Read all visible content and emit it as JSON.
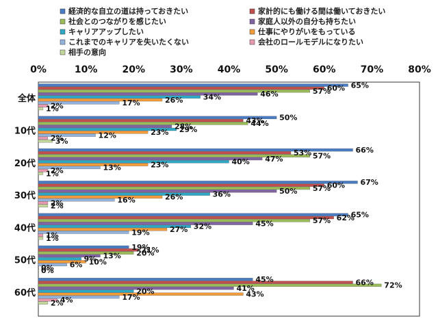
{
  "chart_data": {
    "type": "bar",
    "orientation": "horizontal",
    "x_axis": {
      "min": 0,
      "max": 80,
      "step": 10,
      "unit": "%",
      "position": "top",
      "tick_labels": [
        "0%",
        "10%",
        "20%",
        "30%",
        "40%",
        "50%",
        "60%",
        "70%",
        "80%"
      ]
    },
    "grid": false,
    "legend_position": "top",
    "categories": [
      "全体",
      "10代",
      "20代",
      "30代",
      "40代",
      "50代",
      "60代"
    ],
    "series": [
      {
        "name": "経済的な自立の道は持っておきたい",
        "color": "#4a7cc4",
        "values": [
          65,
          50,
          66,
          67,
          65,
          19,
          45
        ]
      },
      {
        "name": "家計的にも働ける間は働いておきたい",
        "color": "#c0504d",
        "values": [
          60,
          43,
          53,
          60,
          62,
          21,
          66
        ]
      },
      {
        "name": "社会とのつながりを感じたい",
        "color": "#9bbb59",
        "values": [
          57,
          44,
          57,
          57,
          57,
          20,
          72
        ]
      },
      {
        "name": "家庭人以外の自分も持ちたい",
        "color": "#8064a2",
        "values": [
          46,
          28,
          47,
          50,
          45,
          13,
          41
        ]
      },
      {
        "name": "キャリアアップしたい",
        "color": "#2ea8c4",
        "values": [
          34,
          29,
          40,
          36,
          32,
          9,
          20
        ]
      },
      {
        "name": "仕事にやりがいをもっている",
        "color": "#f39c3c",
        "values": [
          26,
          23,
          23,
          26,
          27,
          10,
          43
        ]
      },
      {
        "name": "これまでのキャリアを失いたくない",
        "color": "#93b3dc",
        "values": [
          17,
          12,
          13,
          16,
          19,
          6,
          17
        ]
      },
      {
        "name": "会社のロールモデルになりたい",
        "color": "#e89ab0",
        "values": [
          2,
          2,
          2,
          2,
          1,
          0,
          4
        ]
      },
      {
        "name": "相手の意向",
        "color": "#c3d69b",
        "values": [
          1,
          3,
          1,
          2,
          1,
          0,
          2
        ]
      }
    ]
  }
}
